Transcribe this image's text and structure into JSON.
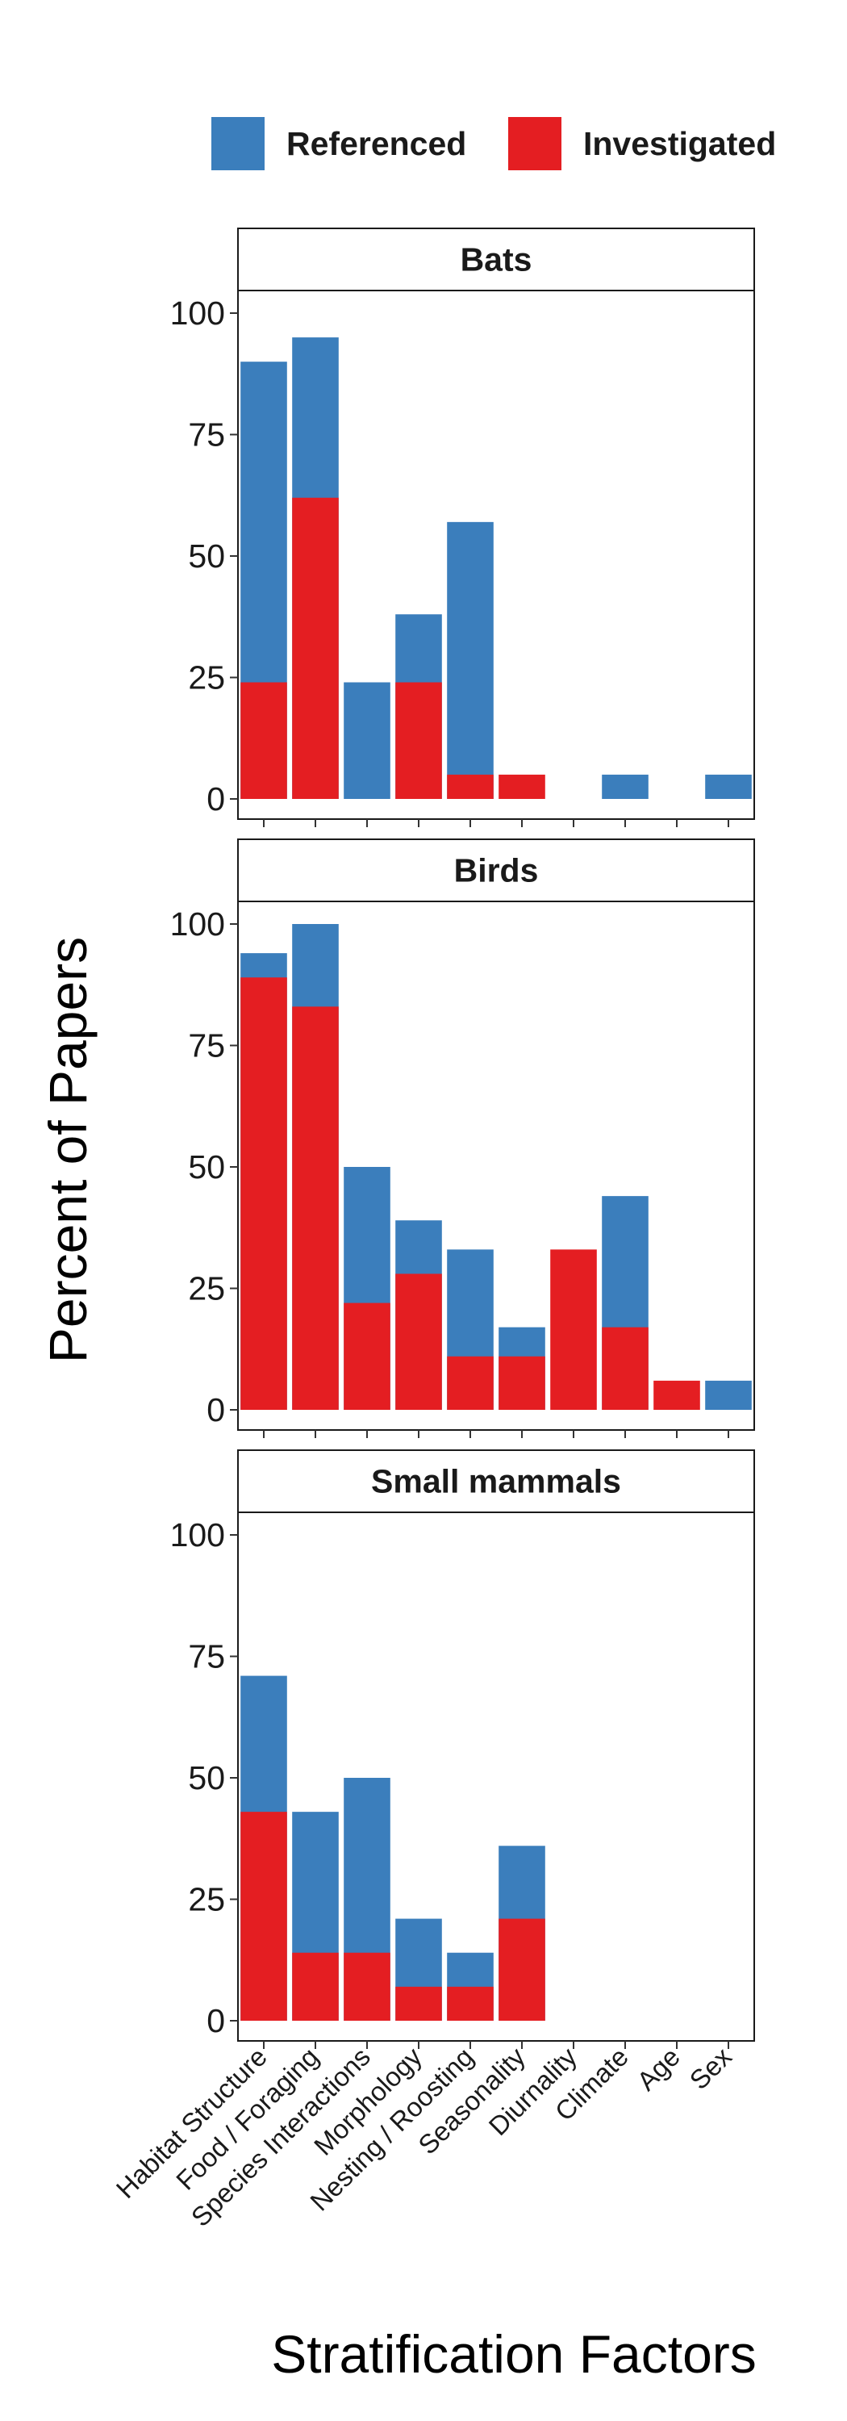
{
  "chart_data": {
    "type": "bar",
    "facet_style": "stacked-overlay faceted bar chart",
    "xlabel": "Stratification Factors",
    "ylabel": "Percent of Papers",
    "ylim": [
      0,
      115
    ],
    "yticks": [
      0,
      25,
      50,
      75,
      100
    ],
    "categories": [
      "Habitat Structure",
      "Food / Foraging",
      "Species Interactions",
      "Morphology",
      "Nesting / Roosting",
      "Seasonality",
      "Diurnality",
      "Climate",
      "Age",
      "Sex"
    ],
    "legend": {
      "position": "top",
      "entries": [
        {
          "name": "Referenced",
          "color": "#3B7EBC"
        },
        {
          "name": "Investigated",
          "color": "#E41E22"
        }
      ]
    },
    "panels": [
      {
        "title": "Bats",
        "series": [
          {
            "name": "Referenced",
            "values": [
              90,
              95,
              24,
              38,
              57,
              0,
              0,
              5,
              0,
              5
            ]
          },
          {
            "name": "Investigated",
            "values": [
              24,
              62,
              0,
              24,
              5,
              5,
              0,
              0,
              0,
              0
            ]
          }
        ]
      },
      {
        "title": "Birds",
        "series": [
          {
            "name": "Referenced",
            "values": [
              94,
              100,
              50,
              39,
              33,
              17,
              0,
              44,
              0,
              6
            ]
          },
          {
            "name": "Investigated",
            "values": [
              89,
              83,
              22,
              28,
              11,
              11,
              33,
              17,
              6,
              0
            ]
          }
        ]
      },
      {
        "title": "Small mammals",
        "series": [
          {
            "name": "Referenced",
            "values": [
              71,
              43,
              50,
              21,
              14,
              36,
              0,
              0,
              0,
              0
            ]
          },
          {
            "name": "Investigated",
            "values": [
              43,
              14,
              14,
              7,
              7,
              21,
              0,
              0,
              0,
              0
            ]
          }
        ]
      }
    ]
  }
}
